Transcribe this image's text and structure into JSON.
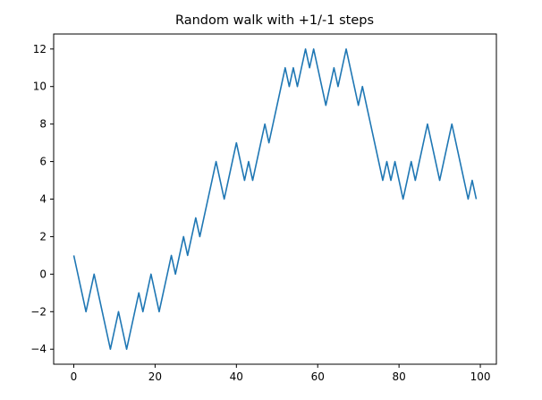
{
  "chart_data": {
    "type": "line",
    "title": "Random walk with +1/-1 steps",
    "xlabel": "",
    "ylabel": "",
    "xlim": [
      -4.95,
      103.95
    ],
    "ylim": [
      -4.8,
      12.8
    ],
    "xticks": [
      0,
      20,
      40,
      60,
      80,
      100
    ],
    "yticks": [
      -4,
      -2,
      0,
      2,
      4,
      6,
      8,
      10,
      12
    ],
    "grid": false,
    "series": [
      {
        "color": "#1f77b4",
        "x": [
          0,
          1,
          2,
          3,
          4,
          5,
          6,
          7,
          8,
          9,
          10,
          11,
          12,
          13,
          14,
          15,
          16,
          17,
          18,
          19,
          20,
          21,
          22,
          23,
          24,
          25,
          26,
          27,
          28,
          29,
          30,
          31,
          32,
          33,
          34,
          35,
          36,
          37,
          38,
          39,
          40,
          41,
          42,
          43,
          44,
          45,
          46,
          47,
          48,
          49,
          50,
          51,
          52,
          53,
          54,
          55,
          56,
          57,
          58,
          59,
          60,
          61,
          62,
          63,
          64,
          65,
          66,
          67,
          68,
          69,
          70,
          71,
          72,
          73,
          74,
          75,
          76,
          77,
          78,
          79,
          80,
          81,
          82,
          83,
          84,
          85,
          86,
          87,
          88,
          89,
          90,
          91,
          92,
          93,
          94,
          95,
          96,
          97,
          98,
          99
        ],
        "values": [
          1,
          0,
          -1,
          -2,
          -1,
          0,
          -1,
          -2,
          -3,
          -4,
          -3,
          -2,
          -3,
          -4,
          -3,
          -2,
          -1,
          -2,
          -1,
          0,
          -1,
          -2,
          -1,
          0,
          1,
          0,
          1,
          2,
          1,
          2,
          3,
          2,
          3,
          4,
          5,
          6,
          5,
          4,
          5,
          6,
          7,
          6,
          5,
          6,
          5,
          6,
          7,
          8,
          7,
          8,
          9,
          10,
          11,
          10,
          11,
          10,
          11,
          12,
          11,
          12,
          11,
          10,
          9,
          10,
          11,
          10,
          11,
          12,
          11,
          10,
          9,
          10,
          9,
          8,
          7,
          6,
          5,
          6,
          5,
          6,
          5,
          4,
          5,
          6,
          5,
          6,
          7,
          8,
          7,
          6,
          5,
          6,
          7,
          8,
          7,
          6,
          5,
          4,
          5,
          4
        ]
      }
    ]
  }
}
